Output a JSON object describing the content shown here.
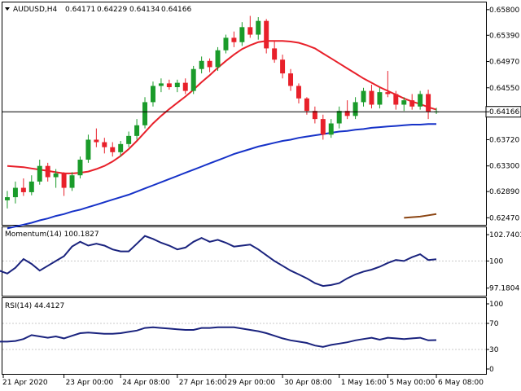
{
  "header": {
    "symbol": "AUDUSD,H4",
    "open": "0.64171",
    "high": "0.64229",
    "low": "0.64134",
    "close": "0.64166"
  },
  "colors": {
    "bull": "#1a9b2a",
    "bear": "#e8202a",
    "ma_fast": "#e8202a",
    "ma_slow": "#1632c8",
    "ma_long": "#8b4513",
    "indicator_line": "#1a237e",
    "price_tag_bg": "#ffffff",
    "frame": "#000000"
  },
  "price_tag": "0.64166",
  "panels": {
    "momentum": {
      "label": "Momentum(14) 100.1827",
      "ticks": [
        "102.7403",
        "100",
        "97.1804"
      ]
    },
    "rsi": {
      "label": "RSI(14) 44.4127",
      "ticks": [
        "100",
        "70",
        "30",
        "0"
      ]
    }
  },
  "chart_data": [
    {
      "type": "candlestick",
      "title": "AUDUSD,H4",
      "ylim": [
        0.6241,
        0.6585
      ],
      "y_ticks": [
        "0.65800",
        "0.65390",
        "0.64970",
        "0.64550",
        "0.64166",
        "0.63720",
        "0.63300",
        "0.62890",
        "0.62470"
      ],
      "x_ticks": [
        "21 Apr 2020",
        "23 Apr 00:00",
        "24 Apr 08:00",
        "27 Apr 16:00",
        "29 Apr 00:00",
        "30 Apr 08:00",
        "1 May 16:00",
        "5 May 00:00",
        "6 May 08:00"
      ],
      "current_price": 0.64166,
      "candles": [
        {
          "o": 0.6275,
          "h": 0.629,
          "l": 0.6262,
          "c": 0.628
        },
        {
          "o": 0.628,
          "h": 0.6305,
          "l": 0.627,
          "c": 0.6295
        },
        {
          "o": 0.6295,
          "h": 0.631,
          "l": 0.6282,
          "c": 0.6288
        },
        {
          "o": 0.6288,
          "h": 0.6315,
          "l": 0.6283,
          "c": 0.6305
        },
        {
          "o": 0.6305,
          "h": 0.634,
          "l": 0.63,
          "c": 0.633
        },
        {
          "o": 0.633,
          "h": 0.6335,
          "l": 0.6305,
          "c": 0.6312
        },
        {
          "o": 0.6312,
          "h": 0.6325,
          "l": 0.6295,
          "c": 0.6318
        },
        {
          "o": 0.6318,
          "h": 0.632,
          "l": 0.6282,
          "c": 0.6295
        },
        {
          "o": 0.6295,
          "h": 0.632,
          "l": 0.629,
          "c": 0.6315
        },
        {
          "o": 0.6315,
          "h": 0.6345,
          "l": 0.631,
          "c": 0.634
        },
        {
          "o": 0.634,
          "h": 0.638,
          "l": 0.6335,
          "c": 0.6372
        },
        {
          "o": 0.6372,
          "h": 0.639,
          "l": 0.636,
          "c": 0.6368
        },
        {
          "o": 0.6368,
          "h": 0.6375,
          "l": 0.635,
          "c": 0.636
        },
        {
          "o": 0.636,
          "h": 0.6368,
          "l": 0.6345,
          "c": 0.6352
        },
        {
          "o": 0.6352,
          "h": 0.637,
          "l": 0.6345,
          "c": 0.6365
        },
        {
          "o": 0.6365,
          "h": 0.6385,
          "l": 0.636,
          "c": 0.6378
        },
        {
          "o": 0.6378,
          "h": 0.6405,
          "l": 0.6372,
          "c": 0.6395
        },
        {
          "o": 0.6395,
          "h": 0.644,
          "l": 0.639,
          "c": 0.6432
        },
        {
          "o": 0.6432,
          "h": 0.6465,
          "l": 0.6425,
          "c": 0.6458
        },
        {
          "o": 0.6458,
          "h": 0.647,
          "l": 0.6448,
          "c": 0.6462
        },
        {
          "o": 0.6462,
          "h": 0.6468,
          "l": 0.6452,
          "c": 0.6456
        },
        {
          "o": 0.6456,
          "h": 0.6468,
          "l": 0.6448,
          "c": 0.6463
        },
        {
          "o": 0.6463,
          "h": 0.647,
          "l": 0.6445,
          "c": 0.645
        },
        {
          "o": 0.645,
          "h": 0.649,
          "l": 0.6445,
          "c": 0.6485
        },
        {
          "o": 0.6485,
          "h": 0.6505,
          "l": 0.6478,
          "c": 0.6498
        },
        {
          "o": 0.6498,
          "h": 0.6502,
          "l": 0.648,
          "c": 0.6488
        },
        {
          "o": 0.6488,
          "h": 0.652,
          "l": 0.6482,
          "c": 0.6515
        },
        {
          "o": 0.6515,
          "h": 0.654,
          "l": 0.651,
          "c": 0.6535
        },
        {
          "o": 0.6535,
          "h": 0.6545,
          "l": 0.652,
          "c": 0.6528
        },
        {
          "o": 0.6528,
          "h": 0.656,
          "l": 0.6522,
          "c": 0.6552
        },
        {
          "o": 0.6552,
          "h": 0.657,
          "l": 0.6535,
          "c": 0.654
        },
        {
          "o": 0.654,
          "h": 0.6568,
          "l": 0.6532,
          "c": 0.6562
        },
        {
          "o": 0.6562,
          "h": 0.6565,
          "l": 0.651,
          "c": 0.6518
        },
        {
          "o": 0.6518,
          "h": 0.653,
          "l": 0.6495,
          "c": 0.65
        },
        {
          "o": 0.65,
          "h": 0.6508,
          "l": 0.647,
          "c": 0.6478
        },
        {
          "o": 0.6478,
          "h": 0.6485,
          "l": 0.645,
          "c": 0.6458
        },
        {
          "o": 0.6458,
          "h": 0.6462,
          "l": 0.643,
          "c": 0.6438
        },
        {
          "o": 0.6438,
          "h": 0.644,
          "l": 0.6412,
          "c": 0.6418
        },
        {
          "o": 0.6418,
          "h": 0.6425,
          "l": 0.6398,
          "c": 0.6405
        },
        {
          "o": 0.6405,
          "h": 0.6412,
          "l": 0.6372,
          "c": 0.638
        },
        {
          "o": 0.638,
          "h": 0.6405,
          "l": 0.6375,
          "c": 0.6398
        },
        {
          "o": 0.6398,
          "h": 0.6425,
          "l": 0.639,
          "c": 0.6418
        },
        {
          "o": 0.6418,
          "h": 0.6435,
          "l": 0.6405,
          "c": 0.641
        },
        {
          "o": 0.641,
          "h": 0.644,
          "l": 0.6405,
          "c": 0.6432
        },
        {
          "o": 0.6432,
          "h": 0.6455,
          "l": 0.6425,
          "c": 0.645
        },
        {
          "o": 0.645,
          "h": 0.646,
          "l": 0.6422,
          "c": 0.6428
        },
        {
          "o": 0.6428,
          "h": 0.6455,
          "l": 0.6422,
          "c": 0.6448
        },
        {
          "o": 0.6448,
          "h": 0.6482,
          "l": 0.644,
          "c": 0.6445
        },
        {
          "o": 0.6445,
          "h": 0.645,
          "l": 0.642,
          "c": 0.6428
        },
        {
          "o": 0.6428,
          "h": 0.644,
          "l": 0.6418,
          "c": 0.6435
        },
        {
          "o": 0.6435,
          "h": 0.6445,
          "l": 0.642,
          "c": 0.6425
        },
        {
          "o": 0.6425,
          "h": 0.645,
          "l": 0.642,
          "c": 0.6445
        },
        {
          "o": 0.6445,
          "h": 0.6452,
          "l": 0.6405,
          "c": 0.6417
        },
        {
          "o": 0.6417,
          "h": 0.6423,
          "l": 0.6413,
          "c": 0.6417
        }
      ],
      "series": [
        {
          "color": "#e8202a",
          "values": [
            0.633,
            0.6329,
            0.6328,
            0.6326,
            0.6324,
            0.6322,
            0.632,
            0.6318,
            0.6318,
            0.6319,
            0.6321,
            0.6325,
            0.633,
            0.6337,
            0.6346,
            0.6357,
            0.637,
            0.6384,
            0.6398,
            0.641,
            0.6421,
            0.6431,
            0.6441,
            0.6452,
            0.6464,
            0.6475,
            0.6487,
            0.6498,
            0.6508,
            0.6517,
            0.6523,
            0.6528,
            0.653,
            0.653,
            0.653,
            0.6529,
            0.6527,
            0.6523,
            0.6518,
            0.651,
            0.6502,
            0.6494,
            0.6486,
            0.6478,
            0.647,
            0.6463,
            0.6456,
            0.645,
            0.6444,
            0.6438,
            0.6433,
            0.6429,
            0.6424,
            0.642
          ]
        },
        {
          "color": "#1632c8",
          "values": [
            0.623,
            0.6233,
            0.6236,
            0.6239,
            0.6243,
            0.6246,
            0.625,
            0.6253,
            0.6257,
            0.626,
            0.6264,
            0.6268,
            0.6272,
            0.6276,
            0.628,
            0.6284,
            0.6289,
            0.6294,
            0.6299,
            0.6304,
            0.6309,
            0.6314,
            0.6319,
            0.6324,
            0.6329,
            0.6334,
            0.6339,
            0.6344,
            0.6349,
            0.6353,
            0.6357,
            0.6361,
            0.6364,
            0.6367,
            0.637,
            0.6372,
            0.6375,
            0.6377,
            0.6379,
            0.6381,
            0.6383,
            0.6385,
            0.6386,
            0.6388,
            0.6389,
            0.6391,
            0.6392,
            0.6393,
            0.6394,
            0.6395,
            0.6396,
            0.6396,
            0.6397,
            0.6397
          ]
        },
        {
          "color": "#8b4513",
          "values": [
            0.6247,
            0.6248,
            0.6249,
            0.6251,
            0.6253
          ]
        }
      ]
    },
    {
      "type": "line",
      "title": "Momentum(14) 100.1827",
      "ylim": [
        96.9,
        103.0
      ],
      "y_ticks": [
        102.7403,
        100,
        97.1804
      ],
      "series": [
        {
          "color": "#1a237e",
          "values": [
            99.0,
            98.7,
            99.3,
            100.2,
            99.7,
            99.0,
            99.5,
            100.0,
            100.5,
            101.5,
            102.0,
            101.6,
            101.8,
            101.6,
            101.2,
            101.0,
            101.0,
            101.8,
            102.6,
            102.3,
            101.9,
            101.6,
            101.2,
            101.4,
            102.0,
            102.4,
            102.0,
            102.2,
            101.9,
            101.5,
            101.6,
            101.7,
            101.2,
            100.6,
            100.0,
            99.5,
            99.0,
            98.6,
            98.2,
            97.7,
            97.4,
            97.5,
            97.7,
            98.2,
            98.6,
            98.9,
            99.1,
            99.4,
            99.8,
            100.1,
            100.0,
            100.4,
            100.7,
            100.1,
            100.18
          ]
        }
      ]
    },
    {
      "type": "line",
      "title": "RSI(14) 44.4127",
      "ylim": [
        0,
        100
      ],
      "y_ticks": [
        100,
        70,
        30,
        0
      ],
      "series": [
        {
          "color": "#1a237e",
          "values": [
            42,
            42,
            43,
            46,
            52,
            50,
            48,
            50,
            47,
            51,
            55,
            56,
            55,
            54,
            54,
            55,
            57,
            59,
            63,
            64,
            63,
            62,
            61,
            60,
            60,
            63,
            63,
            64,
            64,
            64,
            62,
            60,
            58,
            55,
            51,
            47,
            44,
            42,
            40,
            36,
            34,
            37,
            39,
            41,
            44,
            46,
            48,
            45,
            48,
            47,
            46,
            47,
            48,
            44,
            44.4
          ]
        }
      ]
    }
  ]
}
